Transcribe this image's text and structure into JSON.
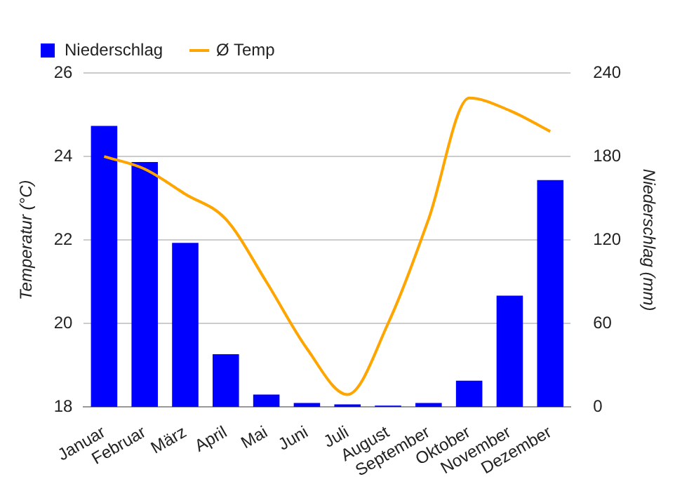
{
  "chart_data": {
    "type": "bar",
    "categories": [
      "Januar",
      "Februar",
      "März",
      "April",
      "Mai",
      "Juni",
      "Juli",
      "August",
      "September",
      "Oktober",
      "November",
      "Dezember"
    ],
    "series": [
      {
        "name": "Niederschlag",
        "axis": "y2",
        "color": "#0000ff",
        "values": [
          202,
          176,
          118,
          38,
          9,
          3,
          2,
          1,
          3,
          19,
          80,
          163
        ]
      },
      {
        "name": "Ø Temp",
        "type": "line",
        "color": "#ffa500",
        "values": [
          24.0,
          23.7,
          23.1,
          22.5,
          21.0,
          19.4,
          18.3,
          20.0,
          22.5,
          25.4,
          25.1,
          24.6
        ]
      }
    ],
    "ylabel": "Temperatur (°C)",
    "y2label": "Niederschlag (mm)",
    "ylim": [
      18,
      26
    ],
    "yticks": [
      18,
      20,
      22,
      24,
      26
    ],
    "y2lim": [
      0,
      240
    ],
    "y2ticks": [
      0,
      60,
      120,
      180,
      240
    ],
    "grid": "y",
    "legend": "top left",
    "marker": "none"
  }
}
